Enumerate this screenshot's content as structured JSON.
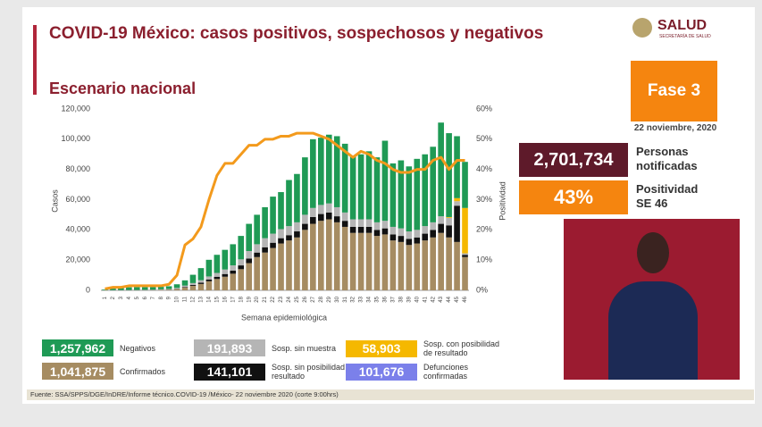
{
  "header": {
    "title": "COVID-19 México: casos positivos, sospechosos y negativos",
    "subtitle": "Escenario nacional",
    "logo": "SALUD",
    "logo_sub": "SECRETARÍA DE SALUD"
  },
  "phase": {
    "label": "Fase 3",
    "date": "22 noviembre, 2020"
  },
  "stats": [
    {
      "value": "2,701,734",
      "label": "Personas notificadas"
    },
    {
      "value": "43%",
      "label": "Positividad SE 46"
    }
  ],
  "chart_data": {
    "type": "bar",
    "stacked": true,
    "xlabel": "Semana epidemiológica",
    "ylabel": "Casos",
    "y2label": "Positividad",
    "categories": [
      "1",
      "2",
      "3",
      "4",
      "5",
      "6",
      "7",
      "8",
      "9",
      "10",
      "11",
      "12",
      "13",
      "14",
      "15",
      "16",
      "17",
      "18",
      "19",
      "20",
      "21",
      "22",
      "23",
      "24",
      "25",
      "26",
      "27",
      "28",
      "29",
      "30",
      "31",
      "32",
      "33",
      "34",
      "35",
      "36",
      "37",
      "38",
      "39",
      "40",
      "41",
      "42",
      "43",
      "44",
      "45",
      "46"
    ],
    "ylim": [
      0,
      120000
    ],
    "yticks": [
      0,
      {
        "value": 20000,
        "label": "20,000"
      },
      {
        "value": 40000,
        "label": "40,000"
      },
      {
        "value": 60000,
        "label": "60,000"
      },
      {
        "value": 80000,
        "label": "80,000"
      },
      {
        "value": 100000,
        "label": "100,000"
      },
      {
        "value": 120000,
        "label": "120,000"
      }
    ],
    "y2lim": [
      0,
      60
    ],
    "y2ticks": [
      {
        "value": 0,
        "label": "0%"
      },
      {
        "value": 10,
        "label": "10%"
      },
      {
        "value": 20,
        "label": "20%"
      },
      {
        "value": 30,
        "label": "30%"
      },
      {
        "value": 40,
        "label": "40%"
      },
      {
        "value": 50,
        "label": "50%"
      },
      {
        "value": 60,
        "label": "60%"
      }
    ],
    "series": [
      {
        "name": "Confirmados",
        "total": "1,041,875",
        "color": "#a68c62",
        "values": [
          20,
          50,
          60,
          80,
          100,
          150,
          200,
          300,
          400,
          800,
          1800,
          3000,
          4200,
          6000,
          7500,
          9000,
          11000,
          14000,
          18000,
          22000,
          25000,
          28000,
          31000,
          33000,
          35000,
          40000,
          44000,
          46000,
          47000,
          45000,
          42000,
          38000,
          38000,
          38000,
          36000,
          37000,
          33000,
          32000,
          30000,
          31000,
          33000,
          35000,
          38000,
          35000,
          32000,
          22000
        ]
      },
      {
        "name": "Sosp. sin posibilidad de resultado",
        "total": "141,101",
        "color": "#111111",
        "values": [
          10,
          20,
          20,
          30,
          40,
          50,
          60,
          80,
          100,
          200,
          400,
          600,
          900,
          1200,
          1500,
          1800,
          2000,
          2500,
          3000,
          3000,
          3500,
          3500,
          3500,
          3500,
          4000,
          4000,
          4500,
          4500,
          4500,
          4000,
          4000,
          4000,
          4000,
          4000,
          4000,
          4000,
          4000,
          4000,
          4000,
          4000,
          4500,
          5000,
          6000,
          8000,
          24000,
          1500
        ]
      },
      {
        "name": "Sosp. sin muestra",
        "total": "191,893",
        "color": "#b5b5b5",
        "values": [
          30,
          50,
          60,
          90,
          100,
          150,
          200,
          300,
          400,
          600,
          900,
          1200,
          1600,
          2000,
          2500,
          3000,
          3500,
          4000,
          5000,
          5500,
          6000,
          6000,
          6000,
          6000,
          6000,
          6000,
          6000,
          6000,
          6000,
          6000,
          5500,
          5000,
          5000,
          5000,
          5000,
          5000,
          5000,
          5000,
          5000,
          5000,
          5000,
          5000,
          5000,
          5000,
          3000,
          1000
        ]
      },
      {
        "name": "Sosp. con posibilidad de resultado",
        "total": "58,903",
        "color": "#f5b800",
        "values": [
          0,
          0,
          0,
          0,
          0,
          0,
          0,
          0,
          0,
          0,
          0,
          0,
          0,
          0,
          0,
          0,
          0,
          0,
          0,
          0,
          0,
          0,
          0,
          0,
          0,
          0,
          0,
          0,
          0,
          0,
          0,
          0,
          0,
          0,
          0,
          0,
          0,
          0,
          0,
          0,
          0,
          0,
          0,
          500,
          2000,
          30000
        ]
      },
      {
        "name": "Negativos",
        "total": "1,257,962",
        "color": "#1f9a55",
        "values": [
          440,
          1000,
          1500,
          1800,
          1900,
          1800,
          1700,
          1600,
          1800,
          2400,
          3500,
          5500,
          8000,
          11000,
          12000,
          13000,
          14000,
          15500,
          18000,
          19500,
          20500,
          24500,
          24500,
          30500,
          32000,
          38000,
          45500,
          44500,
          45500,
          47000,
          45500,
          42000,
          43000,
          45000,
          43000,
          53000,
          42000,
          45000,
          43000,
          47000,
          47500,
          50000,
          62000,
          55500,
          41000,
          30500
        ]
      },
      {
        "type": "line",
        "axis": "y2",
        "color": "#f39a1c",
        "values": [
          0.5,
          1,
          1,
          1.5,
          1.5,
          1.5,
          1.5,
          1.5,
          2,
          5,
          15,
          17,
          21,
          30,
          38,
          42,
          42,
          45,
          48,
          48,
          50,
          50,
          51,
          51,
          52,
          52,
          52,
          51,
          50,
          48,
          46,
          44,
          46,
          45,
          43,
          42,
          40,
          39,
          39,
          40,
          40,
          43,
          44,
          40,
          43,
          43
        ]
      }
    ],
    "extra_legend": {
      "name": "Defunciones confirmadas",
      "total": "101,676",
      "color": "#7b80ea"
    }
  },
  "footer": "Fuente: SSA/SPPS/DGE/InDRE/Informe técnico.COVID-19 /México- 22 noviembre 2020 (corte 9:00hrs)"
}
